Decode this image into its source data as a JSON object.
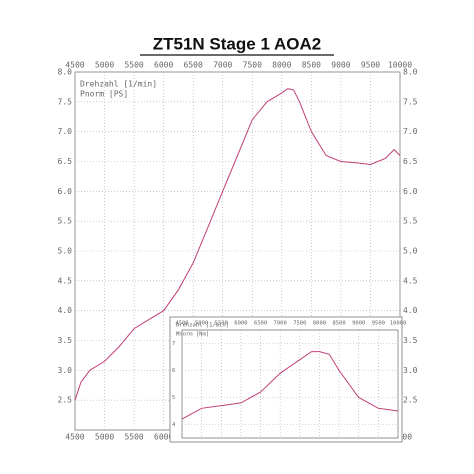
{
  "chart_data": [
    {
      "type": "line",
      "title": "ZT51N  Stage 1  AOA2",
      "xlabel": "Drehzahl [1/min]",
      "ylabel": "Pnorm [PS]",
      "x": [
        4500,
        4600,
        4750,
        5000,
        5250,
        5500,
        5750,
        6000,
        6250,
        6500,
        6750,
        7000,
        7250,
        7500,
        7750,
        8000,
        8100,
        8200,
        8300,
        8500,
        8750,
        9000,
        9250,
        9500,
        9750,
        9900,
        10000
      ],
      "series": [
        {
          "color": "#c2407a",
          "values": [
            2.5,
            2.8,
            3.0,
            3.15,
            3.4,
            3.7,
            3.85,
            4.0,
            4.35,
            4.8,
            5.4,
            6.0,
            6.6,
            7.2,
            7.5,
            7.65,
            7.72,
            7.7,
            7.5,
            7.0,
            6.6,
            6.5,
            6.48,
            6.45,
            6.55,
            6.7,
            6.6
          ]
        }
      ],
      "xlim": [
        4500,
        10000
      ],
      "xticks": [
        4500,
        5000,
        5500,
        6000,
        6500,
        7000,
        7500,
        8000,
        8500,
        9000,
        9500,
        10000
      ],
      "ylim": [
        2,
        8
      ],
      "yticks": [
        2.5,
        3.0,
        3.5,
        4.0,
        4.5,
        5.0,
        5.5,
        6.0,
        6.5,
        7.0,
        7.5,
        8.0
      ],
      "grid": true
    },
    {
      "type": "line",
      "xlabel": "Drehzahl [1/min]",
      "ylabel": "Mnorm [Nm]",
      "x": [
        4500,
        5000,
        5500,
        6000,
        6500,
        7000,
        7500,
        7800,
        8000,
        8250,
        8500,
        9000,
        9500,
        10000
      ],
      "series": [
        {
          "color": "#c2407a",
          "values": [
            4.2,
            4.6,
            4.7,
            4.8,
            5.2,
            5.9,
            6.4,
            6.7,
            6.7,
            6.6,
            6.0,
            5.0,
            4.6,
            4.5
          ]
        }
      ],
      "xlim": [
        4500,
        10000
      ],
      "xticks": [
        4500,
        5000,
        5500,
        6000,
        6500,
        7000,
        7500,
        8000,
        8500,
        9000,
        9500,
        10000
      ],
      "ylim": [
        3.5,
        7.5
      ],
      "yticks": [
        4,
        5,
        6,
        7
      ],
      "grid": true
    }
  ]
}
